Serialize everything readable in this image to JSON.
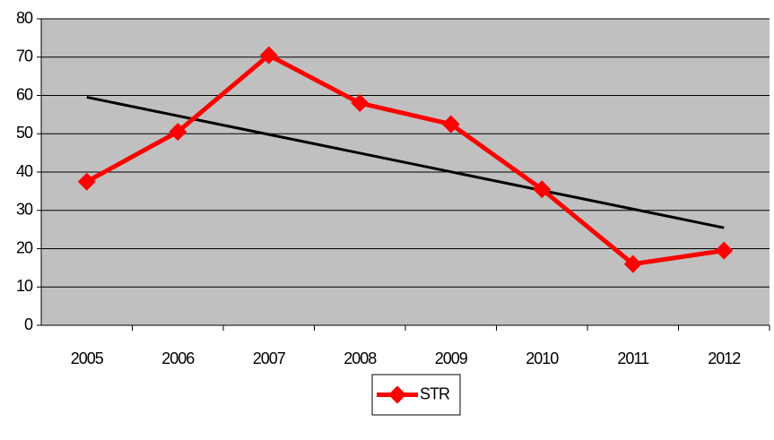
{
  "chart_data": {
    "type": "line",
    "categories": [
      "2005",
      "2006",
      "2007",
      "2008",
      "2009",
      "2010",
      "2011",
      "2012"
    ],
    "series": [
      {
        "name": "STR",
        "color": "#ff0000",
        "values": [
          37.5,
          50.5,
          70.5,
          58,
          52.5,
          35.5,
          16,
          19.5
        ]
      }
    ],
    "ylim": [
      0,
      80
    ],
    "yticks": [
      0,
      10,
      20,
      30,
      40,
      50,
      60,
      70,
      80
    ],
    "grid": true,
    "trendline": true,
    "trendline_color": "#000000",
    "plot_background": "#c0c0c0",
    "legend": "bottom"
  }
}
